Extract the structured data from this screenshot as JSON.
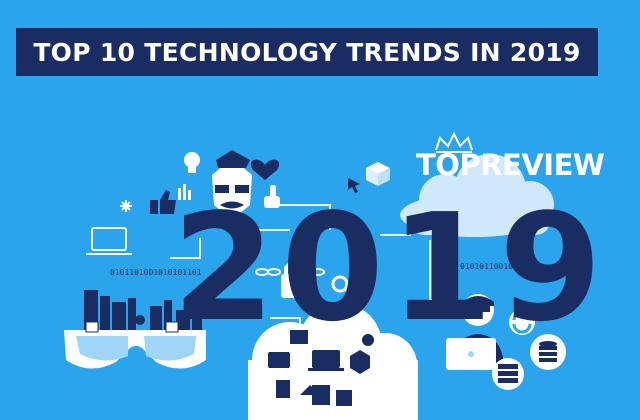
{
  "banner": {
    "title": "TOP 10 TECHNOLOGY TRENDS IN 2019"
  },
  "brand": {
    "name": "TOPREVIEW"
  },
  "hero": {
    "year": "2019"
  },
  "decor": {
    "binary_left": "0101101001010101101",
    "binary_right": "0101011001010",
    "binary_right2": "010"
  },
  "colors": {
    "background": "#2aa4ec",
    "navy": "#1a2d63",
    "white": "#ffffff",
    "light_blue": "#9fd6f7"
  },
  "icons": [
    "lightbulb-icon",
    "heart-icon",
    "thumbs-up-icon",
    "cursor-icon",
    "cube-icon",
    "laptop-icon",
    "padlock-icon",
    "magnifier-icon",
    "cloud-icon",
    "city-icon",
    "vr-glasses-icon",
    "developer-avatar-icon",
    "sync-icon",
    "database-icon",
    "server-icon",
    "crown-icon"
  ]
}
